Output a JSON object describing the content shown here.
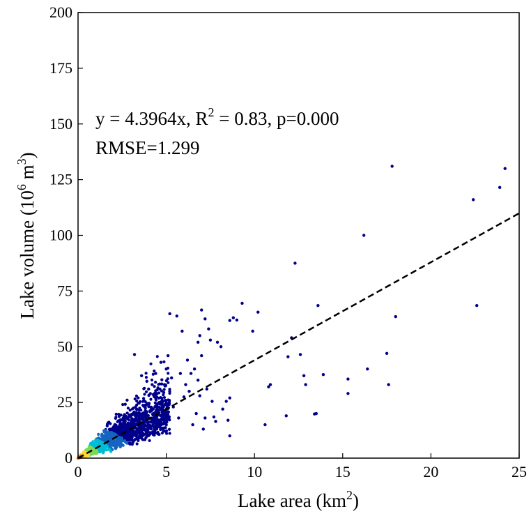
{
  "chart_data": {
    "type": "scatter",
    "title": "",
    "xlabel": {
      "main": "Lake area (km",
      "sup": "2",
      "tail": ")"
    },
    "ylabel": {
      "main": "Lake volume (10",
      "sup": "6",
      "mid": " m",
      "sup2": "3",
      "tail": ")"
    },
    "xlim": [
      0,
      25
    ],
    "ylim": [
      0,
      200
    ],
    "xticks": [
      "0",
      "5",
      "10",
      "15",
      "20",
      "25"
    ],
    "yticks": [
      "0",
      "25",
      "50",
      "75",
      "100",
      "125",
      "150",
      "175",
      "200"
    ],
    "grid": false,
    "fit_line": {
      "slope": 4.3964,
      "intercept": 0,
      "style": "dashed",
      "color": "#000000"
    },
    "annotation": {
      "line1_a": "y = 4.3964x, R",
      "line1_sup": "2",
      "line1_b": " = 0.83, p=0.000",
      "line2": "RMSE=1.299"
    },
    "colors": {
      "low_density": "#00008b",
      "mid_density": "#00bcd4",
      "high_density": "#fdd835",
      "peak_density": "#f57c00"
    },
    "outlier_points": [
      [
        17.8,
        131
      ],
      [
        24.2,
        130
      ],
      [
        23.9,
        121.5
      ],
      [
        22.4,
        116
      ],
      [
        16.2,
        100
      ],
      [
        12.3,
        87.5
      ],
      [
        22.6,
        68.5
      ],
      [
        18.0,
        63.5
      ],
      [
        13.6,
        68.5
      ],
      [
        9.3,
        69.5
      ],
      [
        10.2,
        65.5
      ],
      [
        8.6,
        61.8
      ],
      [
        8.8,
        63
      ],
      [
        9.0,
        62
      ],
      [
        9.9,
        57
      ],
      [
        7.0,
        66.5
      ],
      [
        7.2,
        62.5
      ],
      [
        5.6,
        63.8
      ],
      [
        5.2,
        64.8
      ],
      [
        17.5,
        47
      ],
      [
        16.4,
        40
      ],
      [
        15.3,
        35.5
      ],
      [
        15.3,
        29
      ],
      [
        17.6,
        33
      ],
      [
        13.9,
        37.5
      ],
      [
        13.5,
        20
      ],
      [
        13.4,
        19.8
      ],
      [
        12.6,
        46.5
      ],
      [
        12.1,
        54
      ],
      [
        11.9,
        45.5
      ],
      [
        11.8,
        19
      ],
      [
        10.9,
        33
      ],
      [
        10.8,
        32
      ],
      [
        10.6,
        15
      ],
      [
        12.8,
        37
      ],
      [
        12.9,
        33
      ],
      [
        8.6,
        10
      ],
      [
        8.5,
        17
      ],
      [
        8.2,
        22
      ],
      [
        8.6,
        27
      ],
      [
        8.4,
        25.5
      ],
      [
        7.8,
        16.5
      ],
      [
        7.7,
        18.5
      ],
      [
        7.5,
        53
      ],
      [
        7.9,
        52
      ],
      [
        6.8,
        52
      ],
      [
        6.9,
        55
      ],
      [
        7.4,
        58
      ],
      [
        7.0,
        46
      ],
      [
        8.1,
        50
      ],
      [
        6.2,
        44
      ],
      [
        6.6,
        40
      ],
      [
        6.4,
        38
      ],
      [
        5.8,
        38
      ],
      [
        6.1,
        33
      ],
      [
        6.3,
        30
      ],
      [
        6.0,
        27.5
      ],
      [
        6.9,
        28
      ],
      [
        7.3,
        31
      ],
      [
        6.7,
        20
      ],
      [
        6.5,
        15
      ],
      [
        5.7,
        18
      ],
      [
        5.4,
        23
      ],
      [
        7.1,
        13
      ],
      [
        7.2,
        18
      ],
      [
        7.6,
        25.5
      ],
      [
        6.8,
        35
      ],
      [
        5.9,
        57
      ],
      [
        4.7,
        43
      ],
      [
        5.0,
        40
      ],
      [
        5.3,
        36
      ],
      [
        4.4,
        38
      ],
      [
        4.2,
        33
      ],
      [
        3.2,
        46.5
      ],
      [
        4.0,
        31
      ],
      [
        4.9,
        33
      ],
      [
        5.1,
        46
      ],
      [
        3.6,
        37
      ],
      [
        3.9,
        34.5
      ]
    ]
  }
}
